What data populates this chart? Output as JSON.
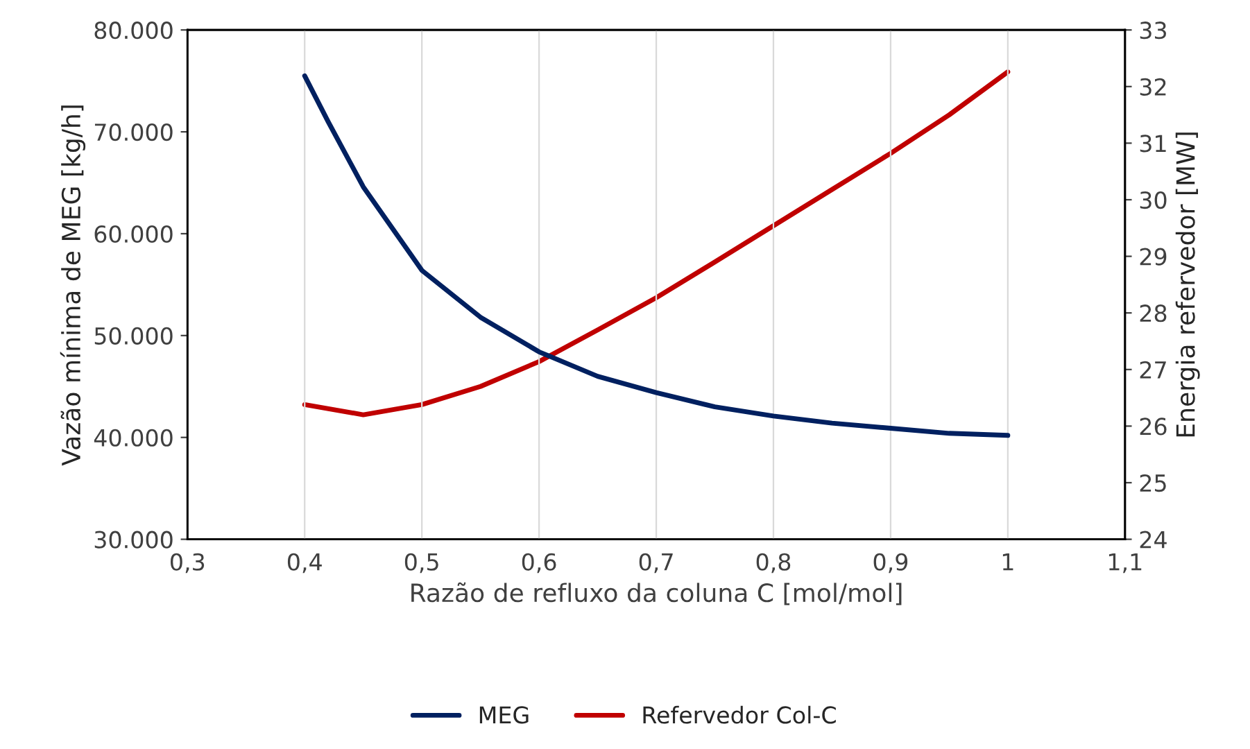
{
  "chart_data": {
    "type": "line",
    "xlabel": "Razão de refluxo da coluna C [mol/mol]",
    "ylabel": "Vazão mínima de MEG [kg/h]",
    "y2label": "Energia refervedor [MW]",
    "xlim": [
      0.3,
      1.1
    ],
    "xticks": [
      {
        "value": 0.3,
        "label": "0,3"
      },
      {
        "value": 0.4,
        "label": "0,4"
      },
      {
        "value": 0.5,
        "label": "0,5"
      },
      {
        "value": 0.6,
        "label": "0,6"
      },
      {
        "value": 0.7,
        "label": "0,7"
      },
      {
        "value": 0.8,
        "label": "0,8"
      },
      {
        "value": 0.9,
        "label": "0,9"
      },
      {
        "value": 1.0,
        "label": "1"
      },
      {
        "value": 1.1,
        "label": "1,1"
      }
    ],
    "ylim": [
      30000,
      80000
    ],
    "yticks": [
      {
        "value": 30000,
        "label": "30.000"
      },
      {
        "value": 40000,
        "label": "40.000"
      },
      {
        "value": 50000,
        "label": "50.000"
      },
      {
        "value": 60000,
        "label": "60.000"
      },
      {
        "value": 70000,
        "label": "70.000"
      },
      {
        "value": 80000,
        "label": "80.000"
      }
    ],
    "y2lim": [
      24,
      33
    ],
    "y2ticks": [
      24,
      25,
      26,
      27,
      28,
      29,
      30,
      31,
      32,
      33
    ],
    "grid": "x",
    "legend": "bottom",
    "marker": "none",
    "line_style": "solid",
    "series": [
      {
        "name": "MEG",
        "color": "#002060",
        "x": [
          0.4,
          0.42,
          0.45,
          0.5,
          0.55,
          0.6,
          0.65,
          0.7,
          0.75,
          0.8,
          0.85,
          0.9,
          0.95,
          1.0
        ],
        "values": [
          75500,
          71000,
          64600,
          56400,
          51800,
          48400,
          46000,
          44400,
          43000,
          42100,
          41400,
          40900,
          40400,
          40200
        ]
      },
      {
        "name": "Refervedor Col-C",
        "color": "#c00000",
        "axis": "y2",
        "x": [
          0.4,
          0.45,
          0.5,
          0.55,
          0.6,
          0.65,
          0.7,
          0.75,
          0.8,
          0.85,
          0.9,
          0.95,
          1.0
        ],
        "values": [
          26.38,
          26.2,
          26.38,
          26.7,
          27.14,
          27.7,
          28.27,
          28.9,
          29.54,
          30.18,
          30.82,
          31.5,
          32.26
        ]
      }
    ]
  }
}
